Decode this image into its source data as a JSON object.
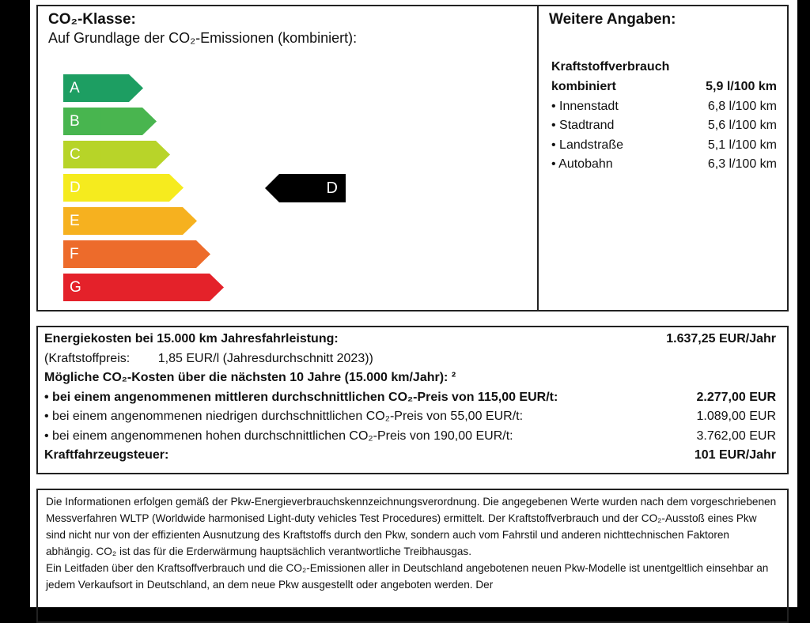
{
  "co2_class": {
    "title": "CO₂-Klasse:",
    "subtitle": "Auf Grundlage der CO₂-Emissionen (kombiniert):",
    "classes": [
      {
        "label": "A",
        "color": "#11995a"
      },
      {
        "label": "B",
        "color": "#3fb146"
      },
      {
        "label": "C",
        "color": "#b4d21d"
      },
      {
        "label": "D",
        "color": "#f5ea12"
      },
      {
        "label": "E",
        "color": "#f6ad13"
      },
      {
        "label": "F",
        "color": "#ec6420"
      },
      {
        "label": "G",
        "color": "#e3161f"
      }
    ],
    "current_class": "D"
  },
  "more_info": {
    "title": "Weitere Angaben:",
    "fuel_heading": "Kraftstoffverbrauch",
    "rows": [
      {
        "label": "kombiniert",
        "value": "5,9 l/100 km"
      },
      {
        "label": "• Innenstadt",
        "value": "6,8 l/100 km"
      },
      {
        "label": "• Stadtrand",
        "value": "5,6 l/100 km"
      },
      {
        "label": "• Landstraße",
        "value": "5,1 l/100 km"
      },
      {
        "label": "• Autobahn",
        "value": "6,3 l/100 km"
      }
    ]
  },
  "costs": {
    "energy_label": "Energiekosten bei 15.000 km Jahresfahrleistung:",
    "energy_value": "1.637,25 EUR/Jahr",
    "fuel_price": "(Kraftstoffpreis:        1,85 EUR/l (Jahresdurchschnitt 2023))",
    "co2_heading": "Mögliche CO₂-Kosten über die nächsten 10 Jahre (15.000 km/Jahr): ²",
    "co2_rows": [
      {
        "label": "• bei einem angenommenen mittleren durchschnittlichen CO₂-Preis von 115,00 EUR/t:",
        "value": "2.277,00 EUR"
      },
      {
        "label": "• bei einem angenommenen niedrigen durchschnittlichen CO₂-Preis von 55,00 EUR/t:",
        "value": "1.089,00 EUR"
      },
      {
        "label": "• bei einem angenommenen hohen durchschnittlichen CO₂-Preis von 190,00 EUR/t:",
        "value": "3.762,00 EUR"
      }
    ],
    "tax_label": "Kraftfahrzeugsteuer:",
    "tax_value": "101 EUR/Jahr"
  },
  "info": {
    "p1": "Die Informationen erfolgen gemäß der Pkw-Energieverbrauchskennzeichnungsverordnung. Die angegebenen Werte wurden nach dem vorgeschriebenen Messverfahren WLTP (Worldwide harmonised Light-duty vehicles Test Procedures) ermittelt. Der Kraftstoffverbrauch und der CO₂-Ausstoß eines Pkw sind nicht nur von der effizienten Ausnutzung des Kraftstoffs durch den Pkw, sondern auch vom Fahrstil und anderen nichttechnischen Faktoren abhängig. CO₂ ist das für die Erderwärmung hauptsächlich verantwortliche Treibhausgas.",
    "p2": "Ein Leitfaden über den Kraftsoffverbrauch und die CO₂-Emissionen aller in Deutschland angebotenen neuen Pkw-Modelle ist unentgeltlich einsehbar an jedem Verkaufsort in Deutschland, an dem neue Pkw ausgestellt oder angeboten werden. Der"
  }
}
